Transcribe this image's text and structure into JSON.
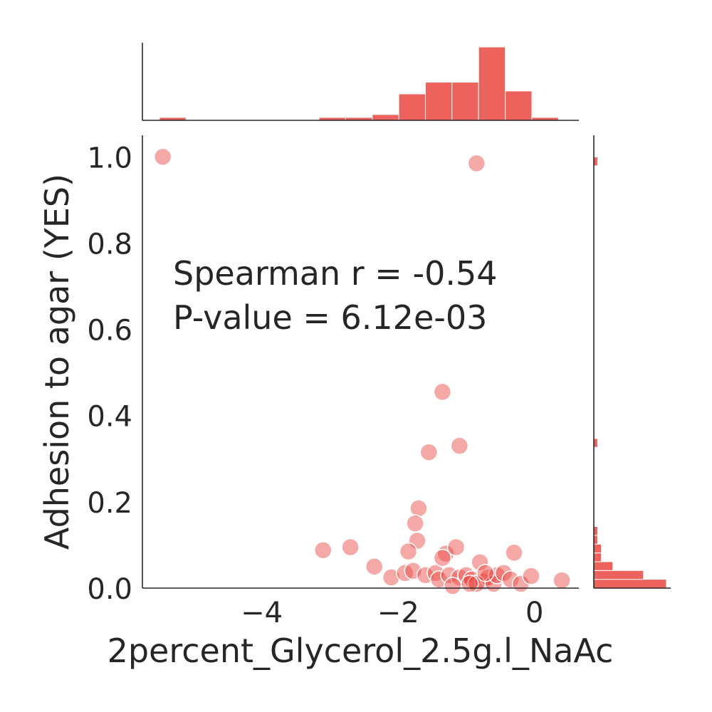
{
  "chart_data": {
    "type": "scatter",
    "kind": "jointplot",
    "xlabel": "2percent_Glycerol_2.5g.l_NaAc",
    "ylabel": "Adhesion to agar (YES)",
    "xlim": [
      -5.75,
      0.65
    ],
    "ylim": [
      0,
      1.05
    ],
    "x_ticks": [
      -4,
      -2,
      0
    ],
    "x_tick_labels": [
      "−4",
      "−2",
      "0"
    ],
    "y_ticks": [
      0,
      0.2,
      0.4,
      0.6,
      0.8,
      1.0
    ],
    "y_tick_labels": [
      "0.0",
      "0.2",
      "0.4",
      "0.6",
      "0.8",
      "1.0"
    ],
    "annotation": [
      "Spearman r = -0.54",
      "P-value = 6.12e-03"
    ],
    "grid": false,
    "color": "#e8413b",
    "points": [
      {
        "x": -5.45,
        "y": 1.0
      },
      {
        "x": -0.85,
        "y": 0.985
      },
      {
        "x": -1.35,
        "y": 0.455
      },
      {
        "x": -1.55,
        "y": 0.315
      },
      {
        "x": -1.1,
        "y": 0.33
      },
      {
        "x": -1.7,
        "y": 0.185
      },
      {
        "x": -1.75,
        "y": 0.15
      },
      {
        "x": -1.72,
        "y": 0.11
      },
      {
        "x": -1.85,
        "y": 0.085
      },
      {
        "x": -3.1,
        "y": 0.088
      },
      {
        "x": -2.7,
        "y": 0.095
      },
      {
        "x": -2.35,
        "y": 0.05
      },
      {
        "x": -2.1,
        "y": 0.025
      },
      {
        "x": -1.9,
        "y": 0.035
      },
      {
        "x": -1.78,
        "y": 0.04
      },
      {
        "x": -1.6,
        "y": 0.03
      },
      {
        "x": -1.45,
        "y": 0.035
      },
      {
        "x": -1.3,
        "y": 0.08
      },
      {
        "x": -1.35,
        "y": 0.07
      },
      {
        "x": -1.15,
        "y": 0.095
      },
      {
        "x": -1.4,
        "y": 0.02
      },
      {
        "x": -1.25,
        "y": 0.03
      },
      {
        "x": -1.1,
        "y": 0.025
      },
      {
        "x": -1.0,
        "y": 0.03
      },
      {
        "x": -0.92,
        "y": 0.02
      },
      {
        "x": -0.8,
        "y": 0.06
      },
      {
        "x": -0.75,
        "y": 0.015
      },
      {
        "x": -0.68,
        "y": 0.025
      },
      {
        "x": -0.6,
        "y": 0.01
      },
      {
        "x": -0.55,
        "y": 0.03
      },
      {
        "x": -0.45,
        "y": 0.035
      },
      {
        "x": -0.3,
        "y": 0.082
      },
      {
        "x": -0.35,
        "y": 0.02
      },
      {
        "x": -0.2,
        "y": 0.01
      },
      {
        "x": -0.05,
        "y": 0.028
      },
      {
        "x": 0.4,
        "y": 0.018
      },
      {
        "x": -0.85,
        "y": 0.01
      },
      {
        "x": -1.2,
        "y": 0.005
      },
      {
        "x": -0.72,
        "y": 0.035
      },
      {
        "x": -0.95,
        "y": 0.01
      }
    ],
    "top_histogram": {
      "bin_start": -5.5,
      "bin_width": 0.39,
      "counts": [
        1,
        0,
        0,
        0,
        0,
        0,
        1,
        1,
        2,
        9,
        13,
        13,
        25,
        10,
        1
      ]
    },
    "right_histogram": {
      "bin_start": 0,
      "bin_width": 0.0204,
      "counts": [
        19,
        13,
        5,
        2,
        2,
        1,
        1,
        0,
        0,
        0,
        0,
        0,
        0,
        0,
        0,
        0,
        1,
        0,
        0,
        0,
        0,
        0,
        0,
        0,
        0,
        0,
        0,
        0,
        0,
        0,
        0,
        0,
        0,
        0,
        0,
        0,
        0,
        0,
        0,
        0,
        0,
        0,
        0,
        0,
        0,
        0,
        0,
        0,
        1
      ]
    }
  }
}
